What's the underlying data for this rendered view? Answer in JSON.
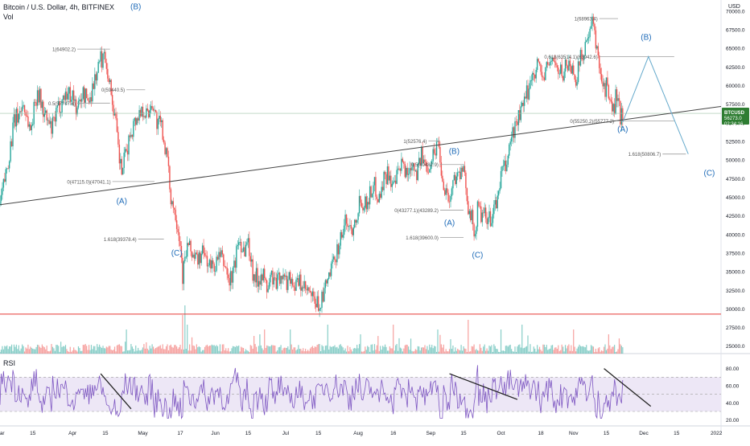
{
  "header": {
    "symbol_line": "Bitcoin / U.S. Dollar, 4h, BITFINEX",
    "vol_label": "Vol",
    "currency_top": "USD",
    "rsi_label": "RSI"
  },
  "price_tag": {
    "symbol": "BTCUSD",
    "price": "56273.0",
    "countdown": "02:34:16",
    "color": "#2e7d32"
  },
  "colors": {
    "up": "#26a69a",
    "down": "#ef5350",
    "wave": "#1e6bb8",
    "rsi_line": "#7e57c2",
    "rsi_band": "#ede7f6",
    "trend": "#444444",
    "fib": "#9e9e9e",
    "support": "#e53935",
    "projection": "#66aacc"
  },
  "chart_data": {
    "type": "candlestick",
    "ylim": [
      24000,
      71500
    ],
    "y_ticks": [
      25000,
      27500,
      30000,
      32500,
      35000,
      37500,
      40000,
      42500,
      45000,
      47500,
      50000,
      52500,
      55000,
      57500,
      60000,
      62500,
      65000,
      67500,
      70000
    ],
    "y_tick_labels": [
      "25000.0",
      "27500.0",
      "30000.0",
      "32500.0",
      "35000.0",
      "37500.0",
      "40000.0",
      "42500.0",
      "45000.0",
      "47500.0",
      "50000.0",
      "52500.0",
      "55000.0",
      "57500.0",
      "60000.0",
      "62500.0",
      "65000.0",
      "67500.0",
      "70000.0"
    ],
    "x_ticks": [
      {
        "label": "Mar",
        "d": 0
      },
      {
        "label": "15",
        "d": 14
      },
      {
        "label": "Apr",
        "d": 31
      },
      {
        "label": "15",
        "d": 45
      },
      {
        "label": "May",
        "d": 61
      },
      {
        "label": "17",
        "d": 77
      },
      {
        "label": "Jun",
        "d": 92
      },
      {
        "label": "15",
        "d": 106
      },
      {
        "label": "Jul",
        "d": 122
      },
      {
        "label": "15",
        "d": 136
      },
      {
        "label": "Aug",
        "d": 153
      },
      {
        "label": "16",
        "d": 168
      },
      {
        "label": "Sep",
        "d": 184
      },
      {
        "label": "15",
        "d": 198
      },
      {
        "label": "Oct",
        "d": 214
      },
      {
        "label": "18",
        "d": 231
      },
      {
        "label": "Nov",
        "d": 245
      },
      {
        "label": "15",
        "d": 259
      },
      {
        "label": "Dec",
        "d": 275
      },
      {
        "label": "15",
        "d": 289
      },
      {
        "label": "2022",
        "d": 306
      }
    ],
    "x_domain_days": [
      0,
      308
    ],
    "price_path": [
      [
        0,
        44000
      ],
      [
        3,
        49000
      ],
      [
        6,
        55000
      ],
      [
        10,
        57500
      ],
      [
        13,
        54000
      ],
      [
        16,
        59500
      ],
      [
        19,
        56000
      ],
      [
        22,
        54000
      ],
      [
        25,
        57000
      ],
      [
        28,
        59000
      ],
      [
        31,
        58800
      ],
      [
        33,
        56500
      ],
      [
        35,
        59000
      ],
      [
        38,
        58000
      ],
      [
        41,
        61500
      ],
      [
        43,
        63500
      ],
      [
        45,
        64000
      ],
      [
        47,
        60000
      ],
      [
        49,
        56000
      ],
      [
        51,
        50000
      ],
      [
        52,
        48500
      ],
      [
        54,
        51000
      ],
      [
        56,
        54000
      ],
      [
        58,
        55500
      ],
      [
        61,
        57000
      ],
      [
        63,
        56000
      ],
      [
        65,
        58000
      ],
      [
        67,
        55000
      ],
      [
        69,
        54500
      ],
      [
        71,
        51000
      ],
      [
        73,
        45000
      ],
      [
        75,
        43000
      ],
      [
        77,
        39000
      ],
      [
        78,
        34500
      ],
      [
        80,
        38500
      ],
      [
        82,
        37500
      ],
      [
        84,
        36500
      ],
      [
        87,
        37500
      ],
      [
        90,
        35500
      ],
      [
        92,
        36000
      ],
      [
        94,
        37000
      ],
      [
        96,
        36000
      ],
      [
        98,
        33500
      ],
      [
        100,
        35500
      ],
      [
        102,
        39500
      ],
      [
        104,
        38000
      ],
      [
        106,
        39000
      ],
      [
        108,
        35000
      ],
      [
        110,
        34000
      ],
      [
        112,
        35000
      ],
      [
        114,
        32500
      ],
      [
        116,
        34500
      ],
      [
        118,
        33000
      ],
      [
        120,
        35000
      ],
      [
        122,
        33500
      ],
      [
        124,
        34500
      ],
      [
        126,
        33000
      ],
      [
        128,
        33500
      ],
      [
        130,
        32500
      ],
      [
        132,
        32000
      ],
      [
        134,
        31000
      ],
      [
        136,
        30500
      ],
      [
        138,
        31500
      ],
      [
        140,
        34000
      ],
      [
        142,
        35500
      ],
      [
        144,
        38000
      ],
      [
        146,
        40000
      ],
      [
        148,
        42000
      ],
      [
        150,
        40500
      ],
      [
        152,
        42500
      ],
      [
        154,
        45000
      ],
      [
        156,
        44000
      ],
      [
        158,
        45500
      ],
      [
        160,
        46500
      ],
      [
        162,
        45000
      ],
      [
        164,
        47500
      ],
      [
        166,
        48500
      ],
      [
        168,
        46000
      ],
      [
        170,
        48000
      ],
      [
        172,
        49500
      ],
      [
        174,
        48000
      ],
      [
        176,
        50000
      ],
      [
        178,
        48500
      ],
      [
        180,
        50500
      ],
      [
        182,
        49000
      ],
      [
        184,
        50000
      ],
      [
        186,
        51500
      ],
      [
        187,
        52700
      ],
      [
        188,
        50500
      ],
      [
        189,
        47000
      ],
      [
        190,
        46500
      ],
      [
        191,
        45500
      ],
      [
        192,
        44500
      ],
      [
        193,
        46000
      ],
      [
        194,
        47500
      ],
      [
        195,
        48500
      ],
      [
        196,
        48000
      ],
      [
        198,
        48200
      ],
      [
        199,
        46500
      ],
      [
        200,
        44000
      ],
      [
        201,
        43000
      ],
      [
        202,
        41000
      ],
      [
        203,
        40000
      ],
      [
        204,
        43500
      ],
      [
        205,
        43000
      ],
      [
        206,
        42000
      ],
      [
        207,
        42500
      ],
      [
        208,
        41500
      ],
      [
        210,
        42500
      ],
      [
        212,
        44000
      ],
      [
        214,
        48000
      ],
      [
        216,
        49000
      ],
      [
        218,
        52500
      ],
      [
        220,
        54500
      ],
      [
        222,
        56000
      ],
      [
        224,
        57500
      ],
      [
        226,
        60000
      ],
      [
        228,
        62000
      ],
      [
        230,
        63000
      ],
      [
        232,
        61000
      ],
      [
        234,
        62500
      ],
      [
        236,
        64000
      ],
      [
        238,
        62000
      ],
      [
        240,
        61500
      ],
      [
        242,
        63000
      ],
      [
        244,
        62500
      ],
      [
        246,
        61000
      ],
      [
        248,
        63500
      ],
      [
        250,
        65500
      ],
      [
        252,
        66500
      ],
      [
        253,
        68500
      ],
      [
        254,
        67000
      ],
      [
        255,
        64500
      ],
      [
        256,
        63500
      ],
      [
        257,
        61000
      ],
      [
        258,
        59500
      ],
      [
        259,
        60000
      ],
      [
        260,
        58500
      ],
      [
        261,
        57000
      ],
      [
        262,
        56500
      ],
      [
        263,
        58500
      ],
      [
        264,
        57500
      ],
      [
        265,
        56000
      ],
      [
        266,
        56273
      ]
    ],
    "volume_spikes": [
      [
        54,
        5
      ],
      [
        78,
        8
      ],
      [
        79,
        10
      ],
      [
        80,
        6
      ],
      [
        111,
        4
      ],
      [
        113,
        5
      ],
      [
        124,
        5
      ],
      [
        140,
        6
      ],
      [
        154,
        4
      ],
      [
        168,
        6
      ],
      [
        187,
        5
      ],
      [
        200,
        7
      ],
      [
        214,
        5
      ],
      [
        223,
        6
      ],
      [
        245,
        5
      ],
      [
        260,
        4
      ]
    ],
    "rsi_ylim": [
      15,
      90
    ],
    "rsi_ticks": [
      20,
      40,
      60,
      80
    ],
    "rsi_tick_labels": [
      "20.00",
      "40.00",
      "60.00",
      "80.00"
    ],
    "rsi_band": [
      30,
      70
    ],
    "trendline": [
      [
        0,
        44000
      ],
      [
        308,
        57200
      ]
    ],
    "support_line": 29300,
    "current_price_line": 56273,
    "waves": [
      {
        "label": "(B)",
        "d": 58,
        "p": 69600,
        "dy": -6
      },
      {
        "label": "(A)",
        "d": 52,
        "p": 45200,
        "dy": 10
      },
      {
        "label": "(C)",
        "d": 75.5,
        "p": 37600,
        "dy": 4
      },
      {
        "label": "(B)",
        "d": 194,
        "p": 50200,
        "dy": -6
      },
      {
        "label": "(A)",
        "d": 192,
        "p": 42300,
        "dy": 10
      },
      {
        "label": "(C)",
        "d": 204,
        "p": 38200,
        "dy": 12
      },
      {
        "label": "(B)",
        "d": 276,
        "p": 65500,
        "dy": -6
      },
      {
        "label": "(A)",
        "d": 266,
        "p": 55100,
        "dy": 12
      },
      {
        "label": "(C)",
        "d": 303,
        "p": 49200,
        "dy": 12
      }
    ],
    "fib_levels": [
      {
        "label": "1(64902.2)",
        "d0": 33,
        "d1": 47,
        "p": 64902,
        "align": "end"
      },
      {
        "label": "0(59440.5)",
        "d0": 54,
        "d1": 62,
        "p": 59440,
        "align": "end"
      },
      {
        "label": "0.5(57?47.4)",
        "d0": 33,
        "d1": 47,
        "p": 57647,
        "align": "end"
      },
      {
        "label": "0(47115.0)(47041.1)",
        "d0": 48,
        "d1": 66,
        "p": 47115,
        "align": "end"
      },
      {
        "label": "1.618(39378.4)",
        "d0": 59,
        "d1": 70,
        "p": 39378,
        "align": "end"
      },
      {
        "label": "1(52576.4)",
        "d0": 183,
        "d1": 188,
        "p": 52576,
        "align": "end"
      },
      {
        "label": "0.5(49482.9)",
        "d0": 188,
        "d1": 198,
        "p": 49400,
        "align": "end"
      },
      {
        "label": "0(43277.1)(43289.2)",
        "d0": 188,
        "d1": 198,
        "p": 43277,
        "align": "end"
      },
      {
        "label": "1.618(39600.0)",
        "d0": 188,
        "d1": 198,
        "p": 39600,
        "align": "end"
      },
      {
        "label": "1(68963.4)",
        "d0": 256,
        "d1": 264,
        "p": 69000,
        "align": "end"
      },
      {
        "label": "0.618(63514.1)(63942.6)",
        "d0": 256,
        "d1": 288,
        "p": 63900,
        "align": "end"
      },
      {
        "label": "0(55250.2)(55777.2)",
        "d0": 263,
        "d1": 288,
        "p": 55250,
        "align": "end"
      },
      {
        "label": "1.618(50806.7)",
        "d0": 283,
        "d1": 293,
        "p": 50806,
        "align": "end"
      }
    ],
    "projection_path": [
      [
        266,
        55100
      ],
      [
        277,
        63900
      ],
      [
        294,
        50806
      ]
    ],
    "rsi_trendlines": [
      {
        "from": [
          43,
          74
        ],
        "to": [
          56,
          33
        ]
      },
      {
        "from": [
          192,
          74
        ],
        "to": [
          221,
          44
        ]
      },
      {
        "from": [
          258,
          80
        ],
        "to": [
          278,
          36
        ]
      }
    ]
  }
}
